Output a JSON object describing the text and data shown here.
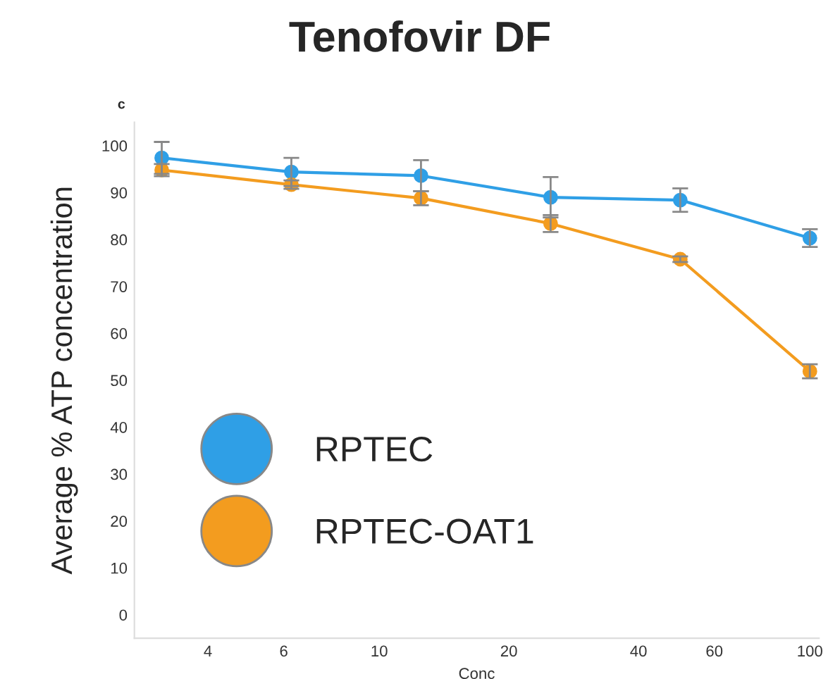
{
  "chart_data": {
    "type": "line",
    "title": "Tenofovir DF",
    "xlabel": "Conc",
    "ylabel": "Average % ATP concentration",
    "annotations": [
      "c"
    ],
    "log": "x",
    "x": [
      3.125,
      6.25,
      12.5,
      25,
      50,
      100
    ],
    "xlim": [
      2.7,
      105
    ],
    "xticks": [
      4,
      6,
      10,
      20,
      40,
      60,
      100
    ],
    "ylim": [
      -5,
      105
    ],
    "yticks": [
      0,
      10,
      20,
      30,
      40,
      50,
      60,
      70,
      80,
      90,
      100
    ],
    "grid": false,
    "legend": "bottom left",
    "marker": "circle",
    "line_style": "solid",
    "series": [
      {
        "name": "RPTEC",
        "color": "#2f9fe6",
        "values": [
          97.4,
          94.4,
          93.6,
          89.0,
          88.4,
          80.3
        ],
        "errors": [
          3.4,
          3.0,
          3.3,
          4.3,
          2.5,
          1.9
        ]
      },
      {
        "name": "RPTEC-OAT1",
        "color": "#f39c1f",
        "values": [
          94.8,
          91.7,
          88.8,
          83.4,
          75.8,
          51.9
        ],
        "errors": [
          1.3,
          0.9,
          1.5,
          1.8,
          0.6,
          1.5
        ]
      }
    ]
  }
}
